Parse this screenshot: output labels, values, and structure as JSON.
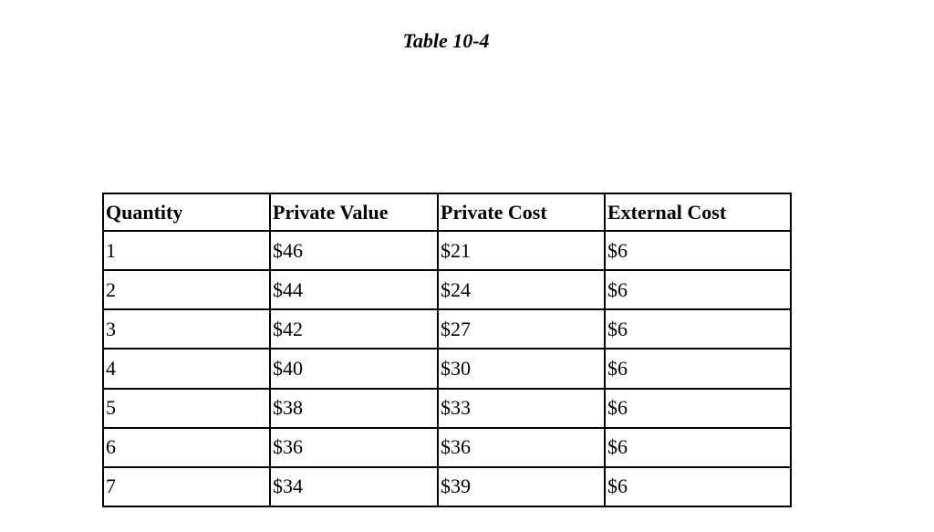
{
  "header": {
    "title": "Table 10-4"
  },
  "table": {
    "columns": [
      "Quantity",
      "Private Value",
      "Private Cost",
      "External Cost"
    ],
    "rows": [
      [
        "1",
        "$46",
        "$21",
        "$6"
      ],
      [
        "2",
        "$44",
        "$24",
        "$6"
      ],
      [
        "3",
        "$42",
        "$27",
        "$6"
      ],
      [
        "4",
        "$40",
        "$30",
        "$6"
      ],
      [
        "5",
        "$38",
        "$33",
        "$6"
      ],
      [
        "6",
        "$36",
        "$36",
        "$6"
      ],
      [
        "7",
        "$34",
        "$39",
        "$6"
      ]
    ]
  }
}
